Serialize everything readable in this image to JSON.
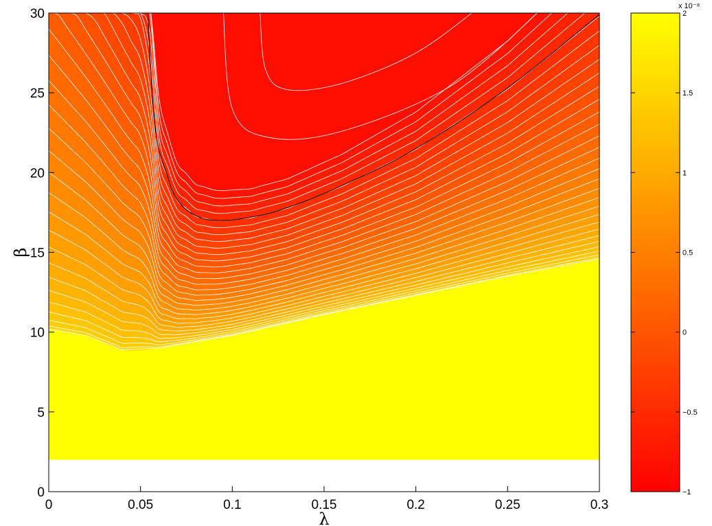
{
  "chart_data": {
    "type": "contour",
    "title": "",
    "xlabel": "λ",
    "ylabel": "β",
    "xlim": [
      0,
      0.3
    ],
    "ylim": [
      0,
      30
    ],
    "xticks": [
      {
        "value": 0,
        "label": "0"
      },
      {
        "value": 0.05,
        "label": "0.05"
      },
      {
        "value": 0.1,
        "label": "0.1"
      },
      {
        "value": 0.15,
        "label": "0.15"
      },
      {
        "value": 0.2,
        "label": "0.2"
      },
      {
        "value": 0.25,
        "label": "0.25"
      },
      {
        "value": 0.3,
        "label": "0.3"
      }
    ],
    "yticks": [
      {
        "value": 0,
        "label": "0"
      },
      {
        "value": 5,
        "label": "5"
      },
      {
        "value": 10,
        "label": "10"
      },
      {
        "value": 15,
        "label": "15"
      },
      {
        "value": 20,
        "label": "20"
      },
      {
        "value": 25,
        "label": "25"
      },
      {
        "value": 30,
        "label": "30"
      }
    ],
    "data_region": {
      "x": [
        0,
        0.3
      ],
      "y": [
        2,
        30
      ]
    },
    "colormap": {
      "low": "#ff0000",
      "high": "#ffff00",
      "name": "autumn"
    },
    "colorbar": {
      "range": [
        -1,
        2
      ],
      "exponent_label": "x 10⁻⁸",
      "ticks": [
        {
          "value": -1,
          "label": "−1"
        },
        {
          "value": -0.5,
          "label": "−0.5"
        },
        {
          "value": 0,
          "label": "0"
        },
        {
          "value": 0.5,
          "label": "0.5"
        },
        {
          "value": 1,
          "label": "1"
        },
        {
          "value": 1.5,
          "label": "1.5"
        },
        {
          "value": 2,
          "label": "2"
        }
      ]
    },
    "zero_contour": {
      "color": "#000000",
      "points": [
        [
          0.054,
          30
        ],
        [
          0.056,
          25.5
        ],
        [
          0.059,
          22
        ],
        [
          0.064,
          20
        ],
        [
          0.07,
          18.3
        ],
        [
          0.08,
          17.3
        ],
        [
          0.092,
          17.0
        ],
        [
          0.11,
          17.2
        ],
        [
          0.13,
          17.8
        ],
        [
          0.16,
          19.2
        ],
        [
          0.2,
          21.5
        ],
        [
          0.25,
          25.3
        ],
        [
          0.3,
          29.9
        ]
      ]
    },
    "saturation_boundary": {
      "points": [
        [
          0,
          10.2
        ],
        [
          0.02,
          9.8
        ],
        [
          0.04,
          8.9
        ],
        [
          0.06,
          9.0
        ],
        [
          0.1,
          9.8
        ],
        [
          0.15,
          11.1
        ],
        [
          0.2,
          12.3
        ],
        [
          0.25,
          13.5
        ],
        [
          0.3,
          14.6
        ]
      ]
    },
    "grid": false,
    "legend": "none"
  }
}
